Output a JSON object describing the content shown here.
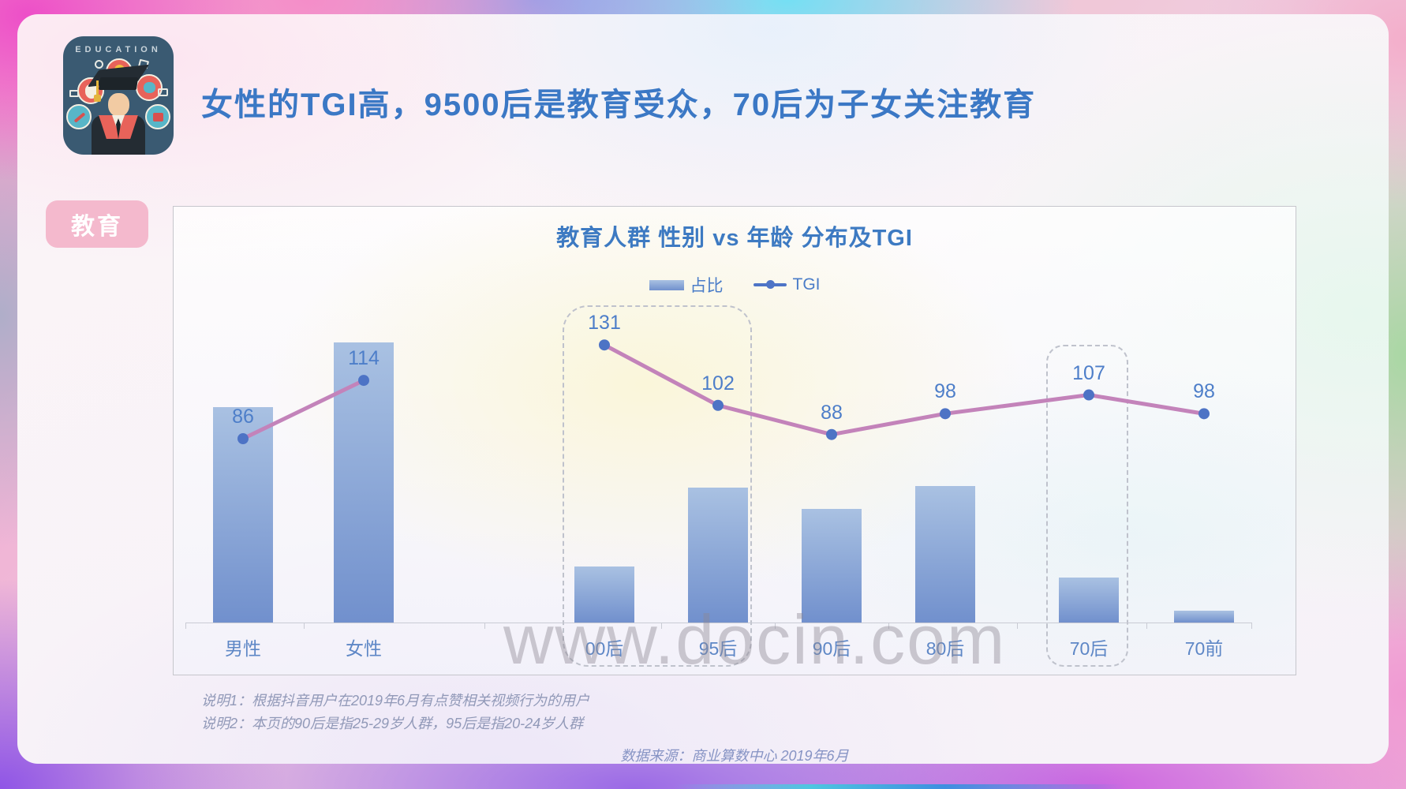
{
  "slide": {
    "title": "女性的TGI高，9500后是教育受众，70后为子女关注教育",
    "category_badge": "教育",
    "app_icon_label": "EDUCATION",
    "watermark": "www.docin.com",
    "footnotes": [
      "说明1：根据抖音用户在2019年6月有点赞相关视频行为的用户",
      "说明2：本页的90后是指25-29岁人群，95后是指20-24岁人群"
    ],
    "source": "数据来源：商业算数中心 2019年6月"
  },
  "chart_data": {
    "type": "bar",
    "subtype": "bar+line combo",
    "title": "教育人群 性别 vs 年龄 分布及TGI",
    "legend": [
      {
        "label": "占比",
        "series_type": "bar"
      },
      {
        "label": "TGI",
        "series_type": "line"
      }
    ],
    "legend_position": "top-center",
    "grid": false,
    "categories": [
      "男性",
      "女性",
      "00后",
      "95后",
      "90后",
      "80后",
      "70后",
      "70前"
    ],
    "series": [
      {
        "name": "占比",
        "type": "bar",
        "values_unlabeled_estimated_pct": [
          43.5,
          56.5,
          11.3,
          27.2,
          22.9,
          27.5,
          9.1,
          2.4
        ]
      },
      {
        "name": "TGI",
        "type": "line",
        "values": [
          86,
          114,
          131,
          102,
          88,
          98,
          107,
          98
        ]
      }
    ],
    "line_segments": [
      [
        0,
        1
      ],
      [
        2,
        3,
        4,
        5,
        6,
        7
      ]
    ],
    "highlight_boxes": [
      [
        "00后",
        "95后"
      ],
      [
        "70后"
      ]
    ],
    "colors": {
      "title": "#3B78C5",
      "bar_top": "#A9C1E2",
      "bar_bottom": "#7190CD",
      "tgi_line": "#C383BA",
      "tgi_dot": "#4D73C5",
      "value_label": "#4D7EC9",
      "axis_label": "#5E87C6",
      "badge_bg": "#F4B9CD"
    }
  }
}
